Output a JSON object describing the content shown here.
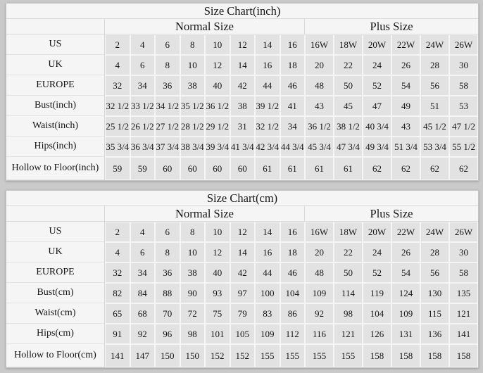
{
  "page_background": "#cacaca",
  "colors": {
    "table_background": "#f5f5f5",
    "data_cell_background": "#e2e2e2",
    "grid_line": "#d8d8d8",
    "text": "#161616"
  },
  "tables": [
    {
      "title": "Size Chart(inch)",
      "group_headers": [
        {
          "label": "Normal Size",
          "span": 8
        },
        {
          "label": "Plus Size",
          "span": 6
        }
      ],
      "rows": [
        {
          "label": "US",
          "values": [
            "2",
            "4",
            "6",
            "8",
            "10",
            "12",
            "14",
            "16",
            "16W",
            "18W",
            "20W",
            "22W",
            "24W",
            "26W"
          ]
        },
        {
          "label": "UK",
          "values": [
            "4",
            "6",
            "8",
            "10",
            "12",
            "14",
            "16",
            "18",
            "20",
            "22",
            "24",
            "26",
            "28",
            "30"
          ]
        },
        {
          "label": "EUROPE",
          "values": [
            "32",
            "34",
            "36",
            "38",
            "40",
            "42",
            "44",
            "46",
            "48",
            "50",
            "52",
            "54",
            "56",
            "58"
          ]
        },
        {
          "label": "Bust(inch)",
          "values": [
            "32 1/2",
            "33 1/2",
            "34 1/2",
            "35 1/2",
            "36 1/2",
            "38",
            "39 1/2",
            "41",
            "43",
            "45",
            "47",
            "49",
            "51",
            "53"
          ]
        },
        {
          "label": "Waist(inch)",
          "values": [
            "25 1/2",
            "26 1/2",
            "27 1/2",
            "28 1/2",
            "29 1/2",
            "31",
            "32 1/2",
            "34",
            "36 1/2",
            "38 1/2",
            "40 3/4",
            "43",
            "45 1/2",
            "47 1/2"
          ]
        },
        {
          "label": "Hips(inch)",
          "values": [
            "35 3/4",
            "36 3/4",
            "37 3/4",
            "38 3/4",
            "39 3/4",
            "41 3/4",
            "42 3/4",
            "44 3/4",
            "45 3/4",
            "47 3/4",
            "49 3/4",
            "51 3/4",
            "53 3/4",
            "55 1/2"
          ]
        },
        {
          "label": "Hollow to Floor(inch)",
          "values": [
            "59",
            "59",
            "60",
            "60",
            "60",
            "60",
            "61",
            "61",
            "61",
            "61",
            "62",
            "62",
            "62",
            "62"
          ]
        }
      ]
    },
    {
      "title": "Size Chart(cm)",
      "group_headers": [
        {
          "label": "Normal Size",
          "span": 8
        },
        {
          "label": "Plus Size",
          "span": 6
        }
      ],
      "rows": [
        {
          "label": "US",
          "values": [
            "2",
            "4",
            "6",
            "8",
            "10",
            "12",
            "14",
            "16",
            "16W",
            "18W",
            "20W",
            "22W",
            "24W",
            "26W"
          ]
        },
        {
          "label": "UK",
          "values": [
            "4",
            "6",
            "8",
            "10",
            "12",
            "14",
            "16",
            "18",
            "20",
            "22",
            "24",
            "26",
            "28",
            "30"
          ]
        },
        {
          "label": "EUROPE",
          "values": [
            "32",
            "34",
            "36",
            "38",
            "40",
            "42",
            "44",
            "46",
            "48",
            "50",
            "52",
            "54",
            "56",
            "58"
          ]
        },
        {
          "label": "Bust(cm)",
          "values": [
            "82",
            "84",
            "88",
            "90",
            "93",
            "97",
            "100",
            "104",
            "109",
            "114",
            "119",
            "124",
            "130",
            "135"
          ]
        },
        {
          "label": "Waist(cm)",
          "values": [
            "65",
            "68",
            "70",
            "72",
            "75",
            "79",
            "83",
            "86",
            "92",
            "98",
            "104",
            "109",
            "115",
            "121"
          ]
        },
        {
          "label": "Hips(cm)",
          "values": [
            "91",
            "92",
            "96",
            "98",
            "101",
            "105",
            "109",
            "112",
            "116",
            "121",
            "126",
            "131",
            "136",
            "141"
          ]
        },
        {
          "label": "Hollow to Floor(cm)",
          "values": [
            "141",
            "147",
            "150",
            "150",
            "152",
            "152",
            "155",
            "155",
            "155",
            "155",
            "158",
            "158",
            "158",
            "158"
          ]
        }
      ]
    }
  ]
}
